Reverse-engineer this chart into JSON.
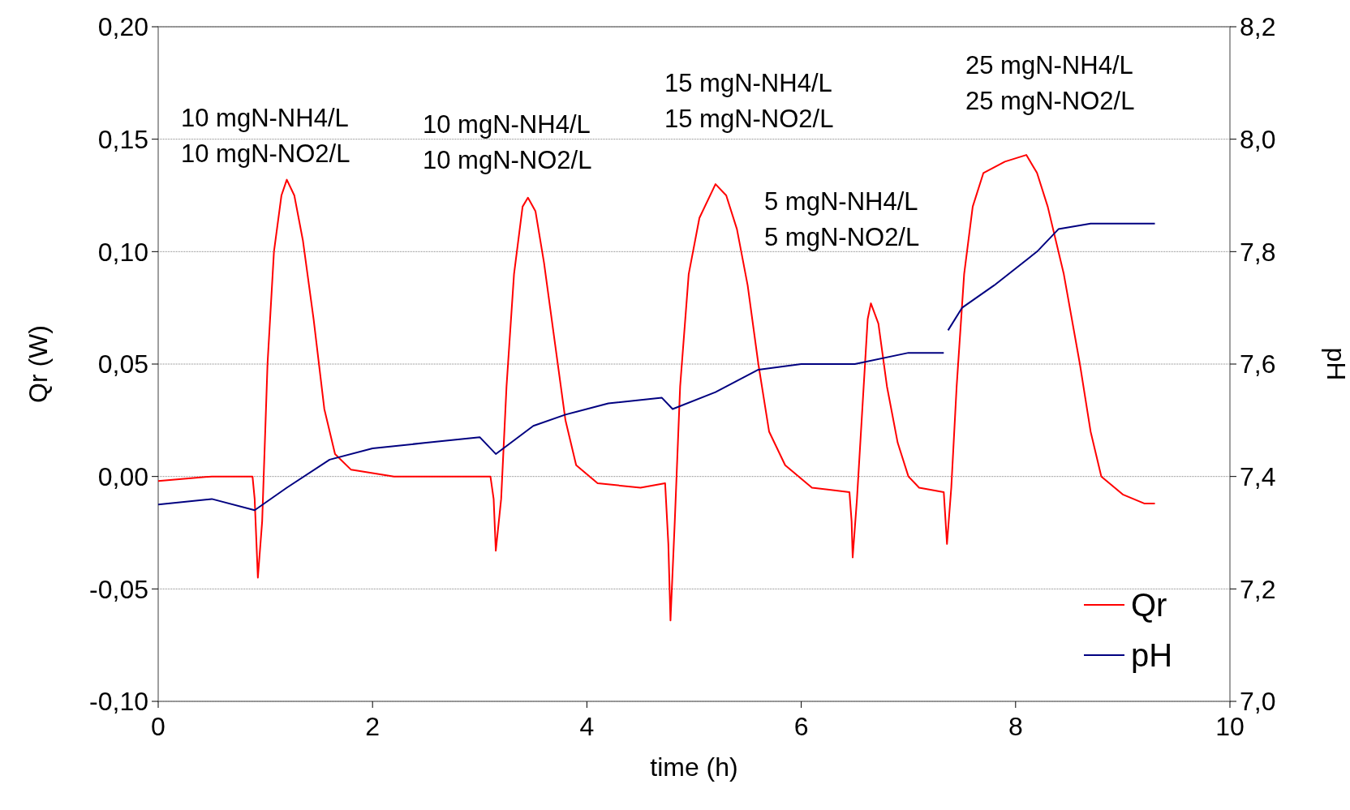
{
  "chart_data": {
    "type": "line",
    "xlabel": "time (h)",
    "ylabel": "Qr (W)",
    "y2label": "pH",
    "xlim": [
      0,
      10
    ],
    "xticks": [
      0,
      2,
      4,
      6,
      8,
      10
    ],
    "ylim": [
      -0.1,
      0.2
    ],
    "yticks": [
      {
        "value": -0.1,
        "label": "-0,10"
      },
      {
        "value": -0.05,
        "label": "-0,05"
      },
      {
        "value": 0,
        "label": "0,00"
      },
      {
        "value": 0.05,
        "label": "0,05"
      },
      {
        "value": 0.1,
        "label": "0,10"
      },
      {
        "value": 0.15,
        "label": "0,15"
      },
      {
        "value": 0.2,
        "label": "0,20"
      }
    ],
    "y2lim": [
      7.0,
      8.2
    ],
    "y2ticks": [
      {
        "value": 7.0,
        "label": "7,0"
      },
      {
        "value": 7.2,
        "label": "7,2"
      },
      {
        "value": 7.4,
        "label": "7,4"
      },
      {
        "value": 7.6,
        "label": "7,6"
      },
      {
        "value": 7.8,
        "label": "7,8"
      },
      {
        "value": 8.0,
        "label": "8,0"
      },
      {
        "value": 8.2,
        "label": "8,2"
      }
    ],
    "grid": "y",
    "legend": "bottom right",
    "marker": "none",
    "line_style": "solid",
    "series": [
      {
        "name": "Qr",
        "color": "#ff0000",
        "x": [
          0,
          0.5,
          0.88,
          0.9,
          0.93,
          0.97,
          1.02,
          1.08,
          1.15,
          1.2,
          1.27,
          1.35,
          1.45,
          1.55,
          1.65,
          1.8,
          2.2,
          2.8,
          3.1,
          3.13,
          3.15,
          3.2,
          3.25,
          3.32,
          3.4,
          3.45,
          3.52,
          3.6,
          3.7,
          3.8,
          3.9,
          4.1,
          4.5,
          4.73,
          4.76,
          4.78,
          4.82,
          4.87,
          4.95,
          5.05,
          5.2,
          5.3,
          5.4,
          5.5,
          5.6,
          5.7,
          5.85,
          6.1,
          6.45,
          6.47,
          6.48,
          6.52,
          6.57,
          6.62,
          6.65,
          6.72,
          6.8,
          6.9,
          7.0,
          7.1,
          7.33,
          7.36,
          7.4,
          7.45,
          7.52,
          7.6,
          7.7,
          7.9,
          8.1,
          8.2,
          8.3,
          8.45,
          8.6,
          8.7,
          8.8,
          9.0,
          9.2,
          9.3
        ],
        "values": [
          -0.002,
          0.0,
          0.0,
          -0.01,
          -0.045,
          -0.02,
          0.05,
          0.1,
          0.125,
          0.132,
          0.125,
          0.105,
          0.07,
          0.03,
          0.01,
          0.003,
          0.0,
          0.0,
          0.0,
          -0.01,
          -0.033,
          -0.01,
          0.04,
          0.09,
          0.12,
          0.124,
          0.118,
          0.095,
          0.06,
          0.025,
          0.005,
          -0.003,
          -0.005,
          -0.003,
          -0.03,
          -0.064,
          -0.02,
          0.04,
          0.09,
          0.115,
          0.13,
          0.125,
          0.11,
          0.085,
          0.05,
          0.02,
          0.005,
          -0.005,
          -0.007,
          -0.02,
          -0.036,
          -0.01,
          0.03,
          0.07,
          0.077,
          0.068,
          0.04,
          0.015,
          0.0,
          -0.005,
          -0.007,
          -0.03,
          -0.005,
          0.04,
          0.09,
          0.12,
          0.135,
          0.14,
          0.143,
          0.135,
          0.12,
          0.09,
          0.05,
          0.02,
          0.0,
          -0.008,
          -0.012,
          -0.012
        ]
      },
      {
        "name": "pH",
        "color": "#000080",
        "axis": "y2",
        "x": [
          0,
          0.5,
          0.9,
          1.2,
          1.6,
          2.0,
          2.5,
          3.0,
          3.15,
          3.5,
          3.8,
          4.2,
          4.7,
          4.8,
          5.2,
          5.6,
          6.0,
          6.5,
          7.0,
          7.33,
          7.35,
          7.37,
          7.5,
          7.8,
          8.2,
          8.4,
          8.7,
          9.0,
          9.3
        ],
        "values": [
          7.35,
          7.36,
          7.34,
          7.38,
          7.43,
          7.45,
          7.46,
          7.47,
          7.44,
          7.49,
          7.51,
          7.53,
          7.54,
          7.52,
          7.55,
          7.59,
          7.6,
          7.6,
          7.62,
          7.62,
          null,
          7.66,
          7.7,
          7.74,
          7.8,
          7.84,
          7.85,
          7.85,
          7.85
        ]
      }
    ],
    "annotations": [
      "10 mgN-NH4/L\n10 mgN-NO2/L",
      "10 mgN-NH4/L\n10 mgN-NO2/L",
      "15 mgN-NH4/L\n15 mgN-NO2/L",
      "5 mgN-NH4/L\n5 mgN-NO2/L",
      "25 mgN-NH4/L\n25 mgN-NO2/L"
    ]
  }
}
